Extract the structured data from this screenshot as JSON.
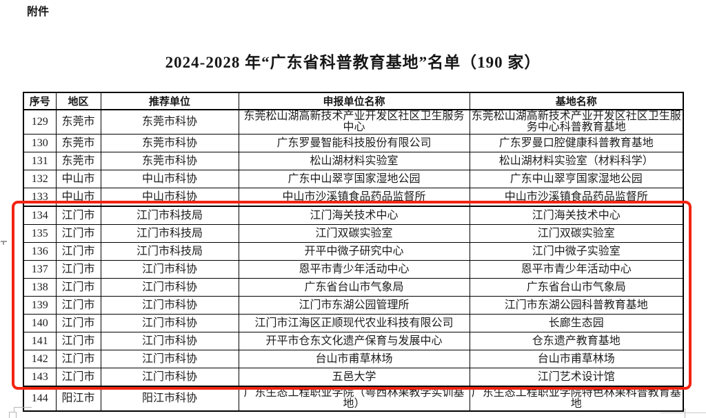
{
  "page": {
    "attachment_label": "附件",
    "title": "2024-2028 年“广东省科普教育基地”名单（190 家）"
  },
  "table": {
    "headers": [
      "序号",
      "地区",
      "推荐单位",
      "申报单位名称",
      "基地名称"
    ],
    "rows": [
      {
        "no": "129",
        "region": "东莞市",
        "recommender": "东莞市科协",
        "applicant": "东莞松山湖高新技术产业开发区社区卫生服务中心",
        "base": "东莞松山湖高新技术产业开发区社区卫生服务中心科普教育基地",
        "highlighted": false
      },
      {
        "no": "130",
        "region": "东莞市",
        "recommender": "东莞市科协",
        "applicant": "广东罗曼智能科技股份有限公司",
        "base": "广东罗曼口腔健康科普教育基地",
        "highlighted": false
      },
      {
        "no": "131",
        "region": "东莞市",
        "recommender": "东莞市科协",
        "applicant": "松山湖材料实验室",
        "base": "松山湖材料实验室（材料科学）",
        "highlighted": false
      },
      {
        "no": "132",
        "region": "中山市",
        "recommender": "中山市科协",
        "applicant": "广东中山翠亨国家湿地公园",
        "base": "广东中山翠亨国家湿地公园",
        "highlighted": false
      },
      {
        "no": "133",
        "region": "中山市",
        "recommender": "中山市科协",
        "applicant": "中山市沙溪镇食品药品监督所",
        "base": "中山市沙溪镇食品药品监督所",
        "highlighted": false
      },
      {
        "no": "134",
        "region": "江门市",
        "recommender": "江门市科技局",
        "applicant": "江门海关技术中心",
        "base": "江门海关技术中心",
        "highlighted": true
      },
      {
        "no": "135",
        "region": "江门市",
        "recommender": "江门市科技局",
        "applicant": "江门双碳实验室",
        "base": "江门双碳实验室",
        "highlighted": true
      },
      {
        "no": "136",
        "region": "江门市",
        "recommender": "江门市科技局",
        "applicant": "开平中微子研究中心",
        "base": "江门中微子实验室",
        "highlighted": true
      },
      {
        "no": "137",
        "region": "江门市",
        "recommender": "江门市科协",
        "applicant": "恩平市青少年活动中心",
        "base": "恩平市青少年活动中心",
        "highlighted": true
      },
      {
        "no": "138",
        "region": "江门市",
        "recommender": "江门市科协",
        "applicant": "广东省台山市气象局",
        "base": "广东省台山市气象局",
        "highlighted": true
      },
      {
        "no": "139",
        "region": "江门市",
        "recommender": "江门市科协",
        "applicant": "江门市东湖公园管理所",
        "base": "江门市东湖公园科普教育基地",
        "highlighted": true
      },
      {
        "no": "140",
        "region": "江门市",
        "recommender": "江门市科协",
        "applicant": "江门市江海区正顺现代农业科技有限公司",
        "base": "长廊生态园",
        "highlighted": true
      },
      {
        "no": "141",
        "region": "江门市",
        "recommender": "江门市科协",
        "applicant": "开平市仓东文化遗产保育与发展中心",
        "base": "仓东遗产教育基地",
        "highlighted": true
      },
      {
        "no": "142",
        "region": "江门市",
        "recommender": "江门市科协",
        "applicant": "台山市甫草林场",
        "base": "台山市甫草林场",
        "highlighted": true
      },
      {
        "no": "143",
        "region": "江门市",
        "recommender": "江门市科协",
        "applicant": "五邑大学",
        "base": "江门艺术设计馆",
        "highlighted": true
      },
      {
        "no": "144",
        "region": "阳江市",
        "recommender": "阳江市科协",
        "applicant": "广东生态工程职业学院（粤西林果教学实训基地）",
        "base": "广东生态工程职业学院特色林果科普教育基地",
        "highlighted": false
      }
    ]
  },
  "highlight": {
    "color": "#f32310",
    "first_row": "134",
    "last_row": "143"
  }
}
